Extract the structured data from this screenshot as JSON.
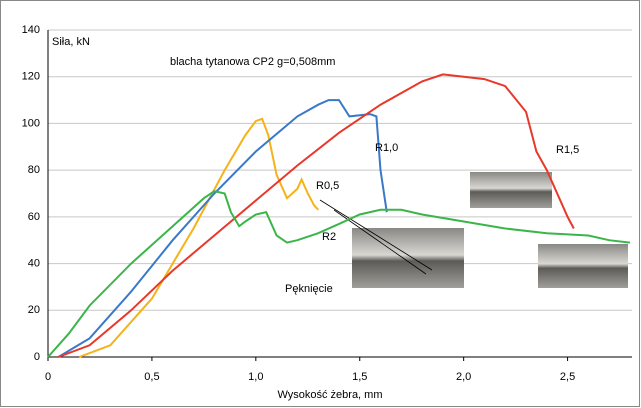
{
  "chart_data": {
    "type": "line",
    "title": "blacha tytanowa CP2 g=0,508mm",
    "ylabel": "Siła, kN",
    "xlabel": "Wysokość żebra, mm",
    "xlim": [
      0,
      2.81
    ],
    "ylim": [
      0,
      140
    ],
    "xticks": [
      0,
      {
        "value": 0.5,
        "label": "0,5"
      },
      {
        "value": 1,
        "label": "1,0"
      },
      {
        "value": 1.5,
        "label": "1,5"
      },
      {
        "value": 2,
        "label": "2,0"
      },
      {
        "value": 2.5,
        "label": "2,5"
      }
    ],
    "yticks": [
      0,
      20,
      40,
      60,
      80,
      100,
      120,
      140
    ],
    "grid": true,
    "annotations": [
      "Pęknięcie"
    ],
    "series": [
      {
        "name": "R0,5",
        "color": "#f5b21a",
        "x": [
          0.15,
          0.3,
          0.5,
          0.7,
          0.85,
          0.95,
          1.0,
          1.03,
          1.06,
          1.1,
          1.15,
          1.2,
          1.22,
          1.25,
          1.28,
          1.3
        ],
        "values": [
          0,
          5,
          25,
          55,
          80,
          95,
          101,
          102,
          95,
          78,
          68,
          72,
          76,
          70,
          65,
          63
        ]
      },
      {
        "name": "R1,0",
        "color": "#3a78c8",
        "x": [
          0.05,
          0.2,
          0.4,
          0.6,
          0.8,
          1.0,
          1.2,
          1.3,
          1.35,
          1.4,
          1.45,
          1.55,
          1.58,
          1.6,
          1.63
        ],
        "values": [
          0,
          8,
          28,
          50,
          70,
          88,
          103,
          108,
          110,
          110,
          103,
          104,
          103,
          80,
          62
        ]
      },
      {
        "name": "R1,5",
        "color": "#e8382a",
        "x": [
          0.05,
          0.2,
          0.4,
          0.6,
          0.8,
          1.0,
          1.2,
          1.4,
          1.6,
          1.8,
          1.9,
          2.0,
          2.1,
          2.2,
          2.3,
          2.35,
          2.4,
          2.45,
          2.5,
          2.53
        ],
        "values": [
          0,
          5,
          20,
          37,
          52,
          67,
          82,
          96,
          108,
          118,
          121,
          120,
          119,
          116,
          105,
          88,
          80,
          70,
          60,
          55
        ]
      },
      {
        "name": "R2",
        "color": "#3bb54a",
        "x": [
          0,
          0.1,
          0.2,
          0.4,
          0.6,
          0.75,
          0.8,
          0.85,
          0.88,
          0.92,
          0.95,
          1.0,
          1.05,
          1.1,
          1.15,
          1.2,
          1.3,
          1.4,
          1.5,
          1.6,
          1.7,
          1.8,
          2.0,
          2.2,
          2.4,
          2.6,
          2.7,
          2.8
        ],
        "values": [
          0,
          10,
          22,
          40,
          56,
          68,
          71,
          70,
          62,
          56,
          58,
          61,
          62,
          52,
          49,
          50,
          53,
          57,
          61,
          63,
          63,
          61,
          58,
          55,
          53,
          52,
          50,
          49
        ]
      }
    ]
  }
}
